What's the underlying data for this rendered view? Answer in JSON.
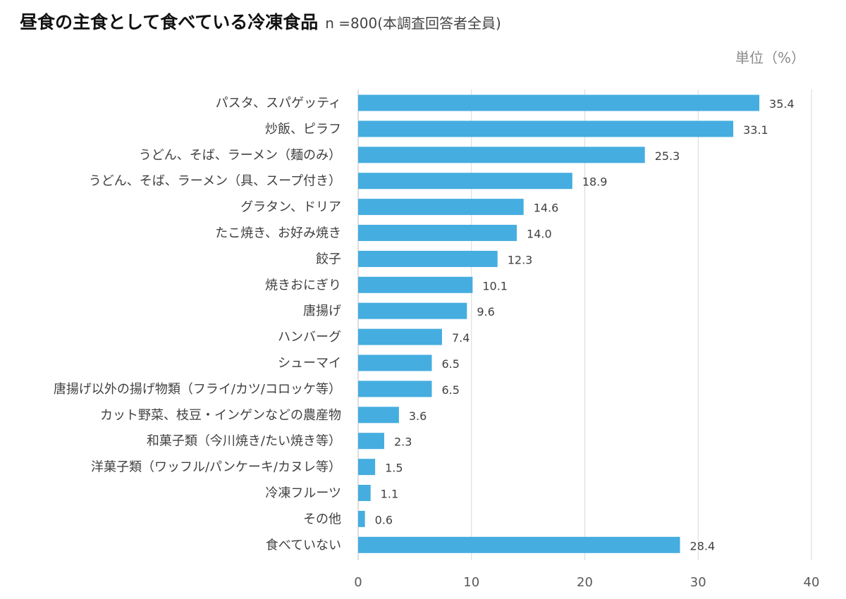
{
  "header": {
    "title": "昼食の主食として食べている冷凍食品",
    "subtitle": "n =800(本調査回答者全員)",
    "unit": "単位（%）"
  },
  "colors": {
    "bar": "#45ade0",
    "grid": "#d9d9d9",
    "axis": "#bfbfbf"
  },
  "chart_data": {
    "type": "bar",
    "orientation": "horizontal",
    "title": "昼食の主食として食べている冷凍食品",
    "subtitle": "n =800(本調査回答者全員)",
    "unit": "単位（%）",
    "xlabel": "",
    "ylabel": "",
    "xlim": [
      0,
      40
    ],
    "xticks": [
      0,
      10,
      20,
      30,
      40
    ],
    "grid": true,
    "categories": [
      "パスタ、スパゲッティ",
      "炒飯、ピラフ",
      "うどん、そば、ラーメン（麺のみ）",
      "うどん、そば、ラーメン（具、スープ付き）",
      "グラタン、ドリア",
      "たこ焼き、お好み焼き",
      "餃子",
      "焼きおにぎり",
      "唐揚げ",
      "ハンバーグ",
      "シューマイ",
      "唐揚げ以外の揚げ物類（フライ/カツ/コロッケ等）",
      "カット野菜、枝豆・インゲンなどの農産物",
      "和菓子類（今川焼き/たい焼き等）",
      "洋菓子類（ワッフル/パンケーキ/カヌレ等）",
      "冷凍フルーツ",
      "その他",
      "食べていない"
    ],
    "values": [
      35.4,
      33.1,
      25.3,
      18.9,
      14.6,
      14.0,
      12.3,
      10.1,
      9.6,
      7.4,
      6.5,
      6.5,
      3.6,
      2.3,
      1.5,
      1.1,
      0.6,
      28.4
    ],
    "value_labels": [
      "35.4",
      "33.1",
      "25.3",
      "18.9",
      "14.6",
      "14.0",
      "12.3",
      "10.1",
      "9.6",
      "7.4",
      "6.5",
      "6.5",
      "3.6",
      "2.3",
      "1.5",
      "1.1",
      "0.6",
      "28.4"
    ]
  }
}
